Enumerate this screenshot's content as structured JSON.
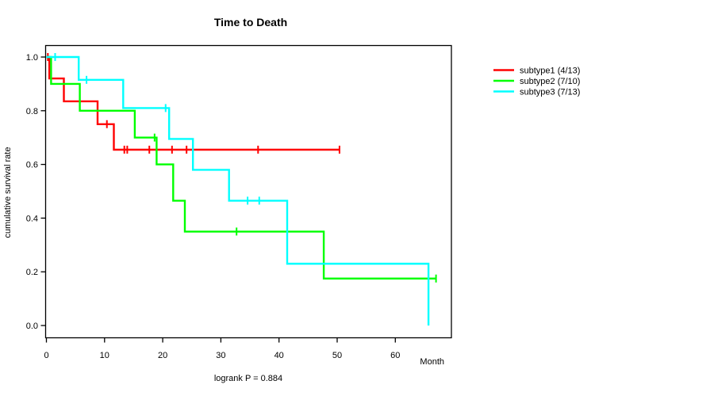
{
  "figure": {
    "title": "Time to Death",
    "footnote": "logrank P = 0.884",
    "x_axis": {
      "label": "Month",
      "ticks": [
        {
          "v": 0,
          "label": "0"
        },
        {
          "v": 10,
          "label": "10"
        },
        {
          "v": 20,
          "label": "20"
        },
        {
          "v": 30,
          "label": "30"
        },
        {
          "v": 40,
          "label": "40"
        },
        {
          "v": 50,
          "label": "50"
        },
        {
          "v": 60,
          "label": "60"
        }
      ]
    },
    "y_axis": {
      "label": "cumulative survival rate",
      "ticks": [
        {
          "v": 0.0,
          "label": "0.0"
        },
        {
          "v": 0.2,
          "label": "0.2"
        },
        {
          "v": 0.4,
          "label": "0.4"
        },
        {
          "v": 0.6,
          "label": "0.6"
        },
        {
          "v": 0.8,
          "label": "0.8"
        },
        {
          "v": 1.0,
          "label": "1.0"
        }
      ]
    }
  },
  "legend": {
    "entries": [
      {
        "id": "subtype1",
        "label": "subtype1 (4/13)",
        "color": "#ff0000"
      },
      {
        "id": "subtype2",
        "label": "subtype2 (7/10)",
        "color": "#00ff00"
      },
      {
        "id": "subtype3",
        "label": "subtype3 (7/13)",
        "color": "#00ffff"
      }
    ]
  },
  "chart_data": {
    "type": "line",
    "variant": "kaplan-meier-step",
    "title": "Time to Death",
    "xlabel": "Month",
    "ylabel": "cumulative survival rate",
    "annotation": "logrank P = 0.884",
    "xlim": [
      0,
      70
    ],
    "ylim": [
      0.0,
      1.0
    ],
    "xticks": [
      0,
      10,
      20,
      30,
      40,
      50,
      60
    ],
    "yticks": [
      0.0,
      0.2,
      0.4,
      0.6,
      0.8,
      1.0
    ],
    "grid": false,
    "legend_position": "top-right-outside",
    "series": [
      {
        "id": "subtype1",
        "name": "subtype1 (4/13)",
        "color": "#ff0000",
        "n": 13,
        "deaths": 4,
        "steps": [
          [
            0,
            1.0
          ],
          [
            0.5,
            0.92
          ],
          [
            3.0,
            0.835
          ],
          [
            8.8,
            0.75
          ],
          [
            11.6,
            0.655
          ]
        ],
        "end_time": 50.4,
        "censor_marks": [
          [
            0.25,
            1.0
          ],
          [
            10.4,
            0.75
          ],
          [
            13.4,
            0.655
          ],
          [
            13.9,
            0.655
          ],
          [
            17.7,
            0.655
          ],
          [
            21.6,
            0.655
          ],
          [
            24.1,
            0.655
          ],
          [
            36.4,
            0.655
          ],
          [
            50.4,
            0.655
          ]
        ]
      },
      {
        "id": "subtype2",
        "name": "subtype2 (7/10)",
        "color": "#00ff00",
        "n": 10,
        "deaths": 7,
        "steps": [
          [
            0,
            1.0
          ],
          [
            0.8,
            0.9
          ],
          [
            5.75,
            0.8
          ],
          [
            15.2,
            0.7
          ],
          [
            18.95,
            0.6
          ],
          [
            21.8,
            0.465
          ],
          [
            23.8,
            0.35
          ],
          [
            47.7,
            0.175
          ]
        ],
        "end_time": 67.0,
        "censor_marks": [
          [
            18.6,
            0.7
          ],
          [
            32.7,
            0.35
          ],
          [
            67.0,
            0.175
          ]
        ]
      },
      {
        "id": "subtype3",
        "name": "subtype3 (7/13)",
        "color": "#00ffff",
        "n": 13,
        "deaths": 7,
        "steps": [
          [
            0,
            1.0
          ],
          [
            5.55,
            0.915
          ],
          [
            13.2,
            0.81
          ],
          [
            21.1,
            0.695
          ],
          [
            25.2,
            0.58
          ],
          [
            31.4,
            0.465
          ],
          [
            41.4,
            0.23
          ],
          [
            65.7,
            0.0
          ]
        ],
        "end_time": 65.7,
        "censor_marks": [
          [
            1.5,
            1.0
          ],
          [
            6.9,
            0.915
          ],
          [
            20.5,
            0.81
          ],
          [
            34.6,
            0.465
          ],
          [
            36.6,
            0.465
          ]
        ]
      }
    ]
  }
}
